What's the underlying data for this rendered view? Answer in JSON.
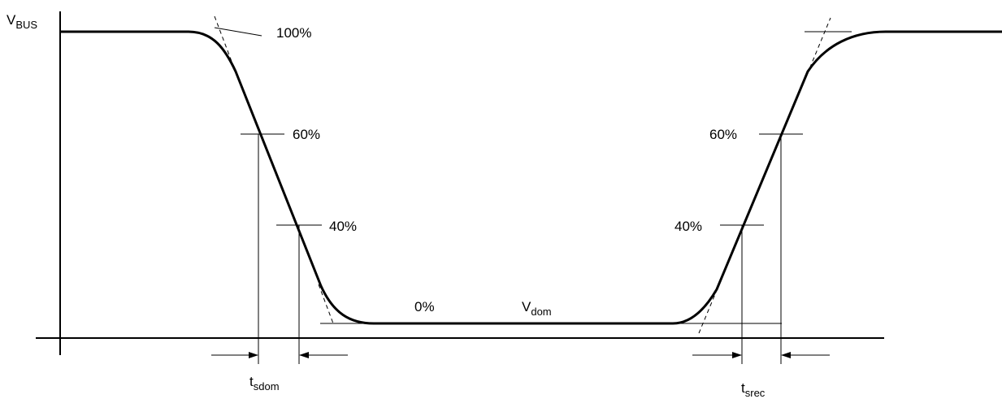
{
  "axis": {
    "y_label": "V",
    "y_label_sub": "BUS"
  },
  "levels": {
    "high_label": "100%",
    "fall_60_label": "60%",
    "fall_40_label": "40%",
    "low_label": "0%",
    "rise_60_label": "60%",
    "rise_40_label": "40%"
  },
  "dominant": {
    "label": "V",
    "label_sub": "dom"
  },
  "timing": {
    "fall_label": "t",
    "fall_label_sub": "sdom",
    "rise_label": "t",
    "rise_label_sub": "srec"
  }
}
